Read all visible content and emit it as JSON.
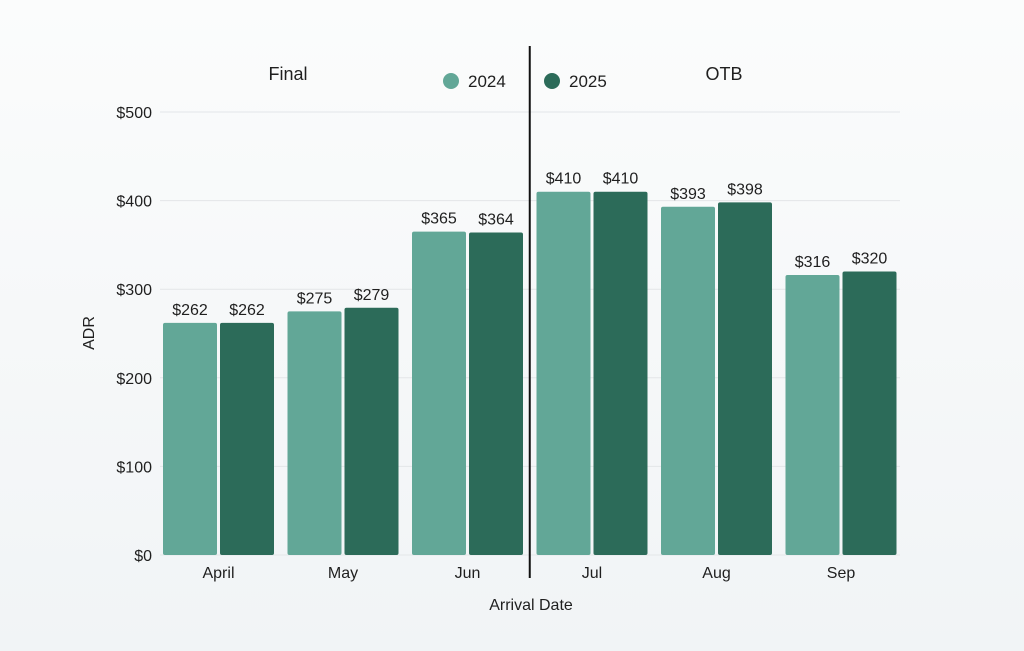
{
  "chart_data": {
    "type": "bar",
    "categories": [
      "April",
      "May",
      "Jun",
      "Jul",
      "Aug",
      "Sep"
    ],
    "series": [
      {
        "name": "2024",
        "values": [
          262,
          275,
          365,
          410,
          393,
          316
        ],
        "color": "#62a797"
      },
      {
        "name": "2025",
        "values": [
          262,
          279,
          364,
          410,
          398,
          320
        ],
        "color": "#2c6b59"
      }
    ],
    "data_labels": [
      [
        "$262",
        "$275",
        "$365",
        "$410",
        "$393",
        "$316"
      ],
      [
        "$262",
        "$279",
        "$364",
        "$410",
        "$398",
        "$320"
      ]
    ],
    "y_ticks": [
      0,
      100,
      200,
      300,
      400,
      500
    ],
    "y_tick_labels": [
      "$0",
      "$100",
      "$200",
      "$300",
      "$400",
      "$500"
    ],
    "ylim": [
      0,
      500
    ],
    "xlabel": "Arrival Date",
    "ylabel": "ADR",
    "sections": [
      "Final",
      "OTB"
    ],
    "divider_after_category": "Jun",
    "legend_position": "top-center",
    "grid": true,
    "grid_color": "#e3e6e8",
    "divider_color": "#111111"
  }
}
